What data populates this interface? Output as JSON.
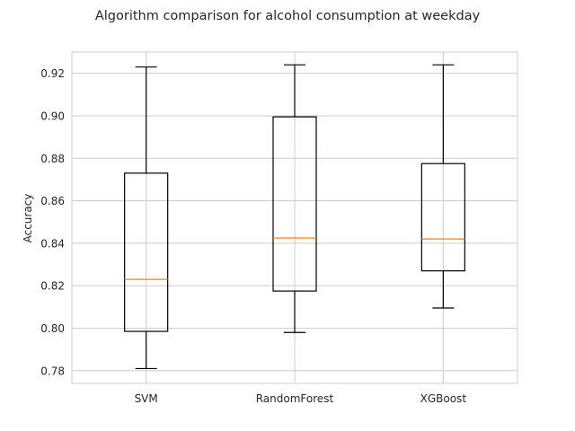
{
  "chart_data": {
    "type": "boxplot",
    "title": "Algorithm comparison for alcohol consumption at weekday",
    "xlabel": "",
    "ylabel": "Accuracy",
    "ylim": [
      0.774,
      0.93
    ],
    "yticks": [
      0.78,
      0.8,
      0.82,
      0.84,
      0.86,
      0.88,
      0.9,
      0.92
    ],
    "ytick_labels": [
      "0.78",
      "0.80",
      "0.82",
      "0.84",
      "0.86",
      "0.88",
      "0.90",
      "0.92"
    ],
    "grid": true,
    "categories": [
      "SVM",
      "RandomForest",
      "XGBoost"
    ],
    "boxes": [
      {
        "category": "SVM",
        "whisker_low": 0.781,
        "q1": 0.7985,
        "median": 0.823,
        "q3": 0.873,
        "whisker_high": 0.923
      },
      {
        "category": "RandomForest",
        "whisker_low": 0.798,
        "q1": 0.8175,
        "median": 0.8425,
        "q3": 0.8995,
        "whisker_high": 0.924
      },
      {
        "category": "XGBoost",
        "whisker_low": 0.8095,
        "q1": 0.827,
        "median": 0.842,
        "q3": 0.8775,
        "whisker_high": 0.924
      }
    ],
    "colors": {
      "box": "#000000",
      "median": "#ff7f0e",
      "grid": "#cccccc",
      "spine": "#cccccc",
      "text": "#262626"
    }
  }
}
